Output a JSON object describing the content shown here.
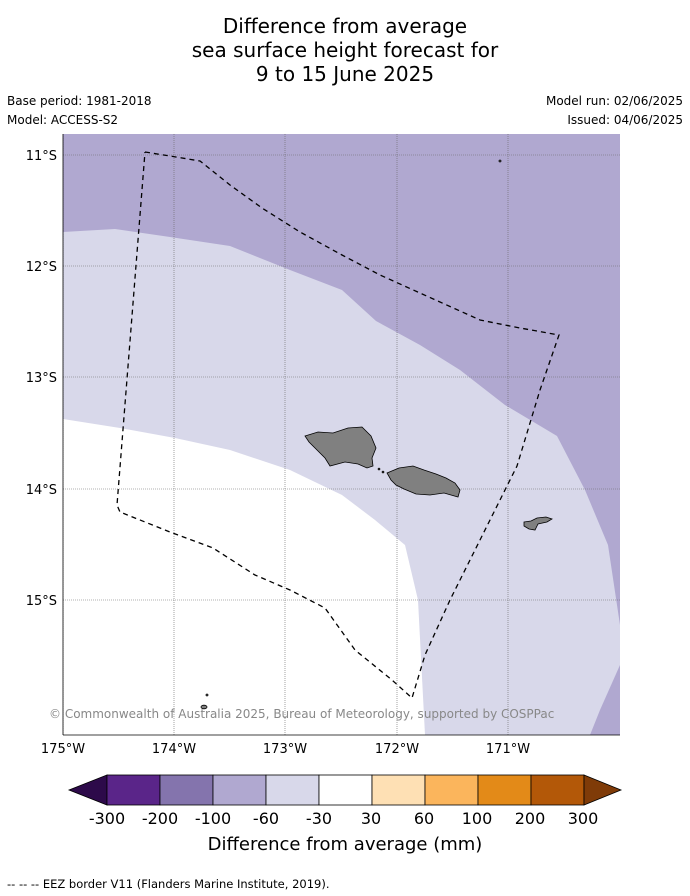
{
  "title": {
    "line1": "Difference from average",
    "line2": "sea surface height forecast for",
    "line3": "9 to 15 June 2025"
  },
  "meta": {
    "base_period": "Base period: 1981-2018",
    "model": "Model: ACCESS-S2",
    "model_run": "Model run: 02/06/2025",
    "issued": "Issued: 04/06/2025"
  },
  "map": {
    "lat_labels": [
      "11°S",
      "12°S",
      "13°S",
      "14°S",
      "15°S"
    ],
    "lon_labels": [
      "175°W",
      "174°W",
      "173°W",
      "172°W",
      "171°W"
    ],
    "copyright": "© Commonwealth of Australia 2025, Bureau of Meteorology, supported by COSPPac"
  },
  "colorbar": {
    "ticks": [
      "-300",
      "-200",
      "-100",
      "-60",
      "-30",
      "30",
      "60",
      "100",
      "200",
      "300"
    ],
    "colors": [
      "#2d0a4a",
      "#5a2589",
      "#8474ad",
      "#b0a8d0",
      "#d8d8ea",
      "#ffffff",
      "#fee0b4",
      "#fbb55c",
      "#e38a18",
      "#b35808",
      "#7f3b08"
    ],
    "label": "Difference from average (mm)"
  },
  "footer": "--  --  -- EEZ border V11 (Flanders Marine Institute, 2019)."
}
